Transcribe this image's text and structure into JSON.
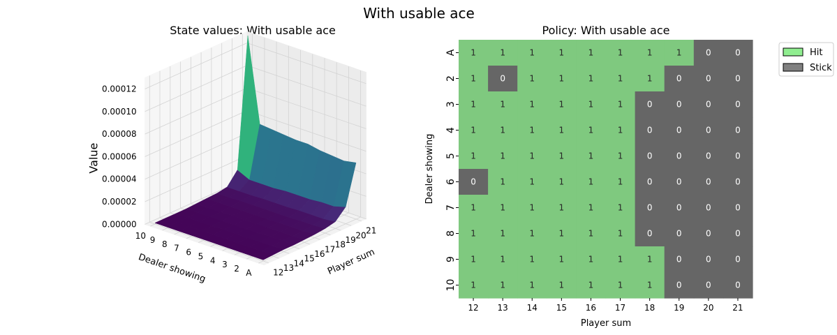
{
  "figure": {
    "suptitle": "With usable ace"
  },
  "colors": {
    "hit": "#7fc97f",
    "stick": "#666666",
    "hit_legend": "#90ee90",
    "stick_legend": "#808080",
    "text_on_hit": "#262626",
    "text_on_stick": "#ffffff"
  },
  "chart_data": [
    {
      "type": "surface3d",
      "title": "State values: With usable ace",
      "xlabel": "Player sum",
      "ylabel": "Dealer showing",
      "zlabel": "Value",
      "player_sums": [
        "12",
        "13",
        "14",
        "15",
        "16",
        "17",
        "18",
        "19",
        "20",
        "21"
      ],
      "dealer_cards": [
        "A",
        "2",
        "3",
        "4",
        "5",
        "6",
        "7",
        "8",
        "9",
        "10"
      ],
      "zticks": [
        "0.00000",
        "0.00002",
        "0.00004",
        "0.00006",
        "0.00008",
        "0.00010",
        "0.00012"
      ],
      "zlim": [
        0,
        0.00013
      ],
      "colormap": "viridis",
      "values": [
        [
          1e-06,
          1.5e-06,
          2e-06,
          2e-06,
          2.5e-06,
          3e-06,
          4e-06,
          6e-06,
          1.5e-05,
          5e-05
        ],
        [
          1e-06,
          1e-06,
          1.5e-06,
          2e-06,
          2e-06,
          2.5e-06,
          3.5e-06,
          5e-06,
          1.2e-05,
          4.8e-05
        ],
        [
          1e-06,
          1e-06,
          1.5e-06,
          2e-06,
          2e-06,
          2.5e-06,
          3.5e-06,
          5e-06,
          1.2e-05,
          4.9e-05
        ],
        [
          1e-06,
          1e-06,
          1.5e-06,
          1.5e-06,
          2e-06,
          2.5e-06,
          3e-06,
          5e-06,
          1.1e-05,
          5e-05
        ],
        [
          1e-06,
          1e-06,
          1.5e-06,
          1.5e-06,
          2e-06,
          2e-06,
          3e-06,
          4.5e-06,
          1.1e-05,
          5.2e-05
        ],
        [
          1e-06,
          1e-06,
          1.5e-06,
          1.5e-06,
          2e-06,
          2e-06,
          3e-06,
          4.5e-06,
          1.1e-05,
          5.2e-05
        ],
        [
          1e-06,
          1e-06,
          1e-06,
          1.5e-06,
          2e-06,
          2e-06,
          3e-06,
          4.5e-06,
          1e-05,
          5.3e-05
        ],
        [
          1e-06,
          1e-06,
          1e-06,
          1.5e-06,
          1.5e-06,
          2e-06,
          3e-06,
          4e-06,
          1e-05,
          5.4e-05
        ],
        [
          1e-06,
          1e-06,
          1e-06,
          1.5e-06,
          1.5e-06,
          2e-06,
          2.5e-06,
          4e-06,
          1e-05,
          5.5e-05
        ],
        [
          1e-06,
          1e-06,
          1e-06,
          1e-06,
          1.5e-06,
          2e-06,
          2.5e-06,
          4e-06,
          1.5e-05,
          0.00013
        ]
      ]
    },
    {
      "type": "heatmap",
      "title": "Policy: With usable ace",
      "xlabel": "Player sum",
      "ylabel": "Dealer showing",
      "x": [
        "12",
        "13",
        "14",
        "15",
        "16",
        "17",
        "18",
        "19",
        "20",
        "21"
      ],
      "y": [
        "A",
        "2",
        "3",
        "4",
        "5",
        "6",
        "7",
        "8",
        "9",
        "10"
      ],
      "values": [
        [
          1,
          1,
          1,
          1,
          1,
          1,
          1,
          1,
          0,
          0
        ],
        [
          1,
          0,
          1,
          1,
          1,
          1,
          1,
          0,
          0,
          0
        ],
        [
          1,
          1,
          1,
          1,
          1,
          1,
          0,
          0,
          0,
          0
        ],
        [
          1,
          1,
          1,
          1,
          1,
          1,
          0,
          0,
          0,
          0
        ],
        [
          1,
          1,
          1,
          1,
          1,
          1,
          0,
          0,
          0,
          0
        ],
        [
          0,
          1,
          1,
          1,
          1,
          1,
          0,
          0,
          0,
          0
        ],
        [
          1,
          1,
          1,
          1,
          1,
          1,
          0,
          0,
          0,
          0
        ],
        [
          1,
          1,
          1,
          1,
          1,
          1,
          0,
          0,
          0,
          0
        ],
        [
          1,
          1,
          1,
          1,
          1,
          1,
          1,
          0,
          0,
          0
        ],
        [
          1,
          1,
          1,
          1,
          1,
          1,
          1,
          0,
          0,
          0
        ]
      ],
      "legend": {
        "position": "upper-right-outside",
        "entries": [
          {
            "label": "Hit",
            "value": 1
          },
          {
            "label": "Stick",
            "value": 0
          }
        ]
      }
    }
  ]
}
